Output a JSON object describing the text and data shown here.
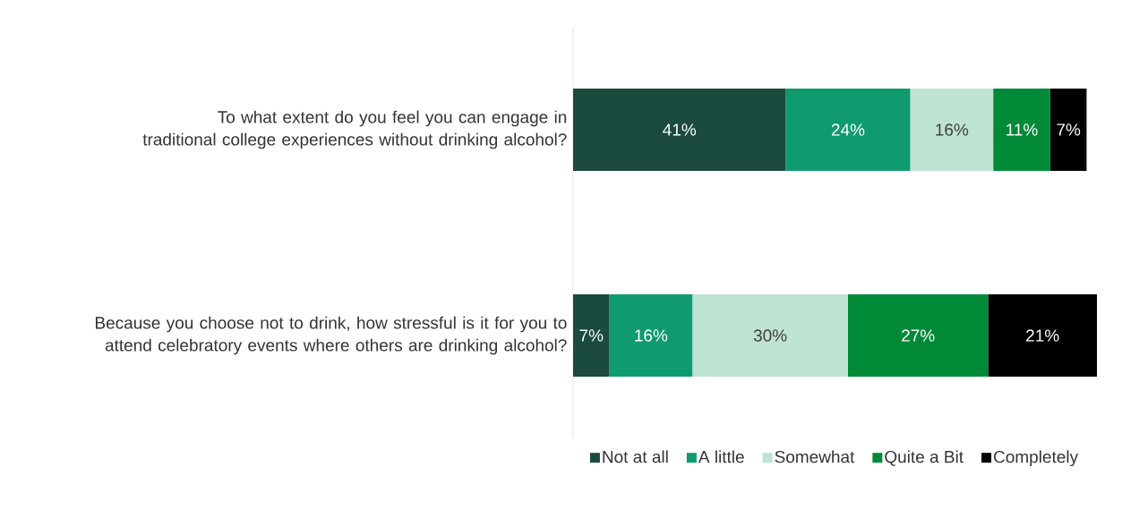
{
  "chart_data": {
    "type": "bar",
    "orientation": "horizontal",
    "stacked": true,
    "legend": "bottom",
    "categories": [
      "To what extent do you feel you can engage in traditional college experiences without drinking alcohol?",
      "Because you choose not to drink, how stressful is it for you to attend celebratory events where others are drinking alcohol?"
    ],
    "series": [
      {
        "name": "Not at all",
        "color": "#1b4a3f",
        "values": [
          41,
          7
        ],
        "value_labels": [
          "41%",
          "7%"
        ]
      },
      {
        "name": "A little",
        "color": "#0f9a6f",
        "values": [
          24,
          16
        ],
        "value_labels": [
          "24%",
          "16%"
        ]
      },
      {
        "name": "Somewhat",
        "color": "#bfe3d1",
        "values": [
          16,
          30
        ],
        "value_labels": [
          "16%",
          "30%"
        ]
      },
      {
        "name": "Quite a Bit",
        "color": "#008a38",
        "values": [
          11,
          27
        ],
        "value_labels": [
          "11%",
          "27%"
        ]
      },
      {
        "name": "Completely",
        "color": "#000000",
        "values": [
          7,
          21
        ],
        "value_labels": [
          "7%",
          "21%"
        ]
      }
    ]
  }
}
